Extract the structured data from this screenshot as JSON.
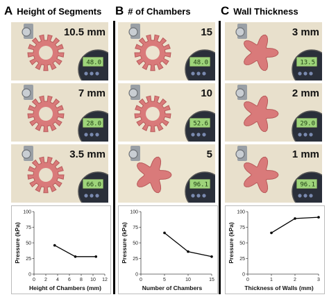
{
  "panels": [
    {
      "letter": "A",
      "title": "Height of Segments",
      "photos": [
        {
          "label": "10.5 mm",
          "gauge": "48.0",
          "shape": "gear"
        },
        {
          "label": "7 mm",
          "gauge": "28.0",
          "shape": "gear"
        },
        {
          "label": "3.5 mm",
          "gauge": "66.0",
          "shape": "gear"
        }
      ]
    },
    {
      "letter": "B",
      "title": "# of Chambers",
      "photos": [
        {
          "label": "15",
          "gauge": "48.0",
          "shape": "gear"
        },
        {
          "label": "10",
          "gauge": "52.6",
          "shape": "gear"
        },
        {
          "label": "5",
          "gauge": "96.1",
          "shape": "blob"
        }
      ]
    },
    {
      "letter": "C",
      "title": "Wall Thickness",
      "photos": [
        {
          "label": "3 mm",
          "gauge": "13.5",
          "shape": "blob"
        },
        {
          "label": "2 mm",
          "gauge": "29.0",
          "shape": "blob"
        },
        {
          "label": "1 mm",
          "gauge": "96.1",
          "shape": "blob"
        }
      ]
    }
  ],
  "chart_data": [
    {
      "type": "line",
      "x": [
        3.5,
        7,
        10.5
      ],
      "y": [
        46,
        28,
        28
      ],
      "xlabel": "Height of Chambers (mm)",
      "ylabel": "Pressure (kPa)",
      "xlim": [
        0,
        12
      ],
      "ylim": [
        0,
        100
      ],
      "xticks": [
        0,
        2,
        4,
        6,
        8,
        10,
        12
      ],
      "yticks": [
        0,
        25,
        50,
        75,
        100
      ],
      "grid": false,
      "color": "#000000"
    },
    {
      "type": "line",
      "x": [
        5,
        10,
        15
      ],
      "y": [
        66,
        36,
        28
      ],
      "xlabel": "Number of Chambers",
      "ylabel": "Pressure (kPa)",
      "xlim": [
        0,
        15
      ],
      "ylim": [
        0,
        100
      ],
      "xticks": [
        0,
        5,
        10,
        15
      ],
      "yticks": [
        0,
        25,
        50,
        75,
        100
      ],
      "grid": false,
      "color": "#000000"
    },
    {
      "type": "line",
      "x": [
        1,
        2,
        3
      ],
      "y": [
        66,
        89,
        91
      ],
      "xlabel": "Thickness of Walls (mm)",
      "ylabel": "Pressure (kPa)",
      "xlim": [
        0,
        3
      ],
      "ylim": [
        0,
        100
      ],
      "xticks": [
        0,
        1,
        2,
        3
      ],
      "yticks": [
        0,
        25,
        50,
        75,
        100
      ],
      "grid": false,
      "color": "#000000"
    }
  ],
  "colors": {
    "actuator": "#d97a7a",
    "actuator_dark": "#b85a5a",
    "background_a": "#e8e0cc",
    "background_b": "#ece4d0",
    "gauge_screen": "#9ed47a",
    "gauge_body": "#2a2f3a"
  }
}
